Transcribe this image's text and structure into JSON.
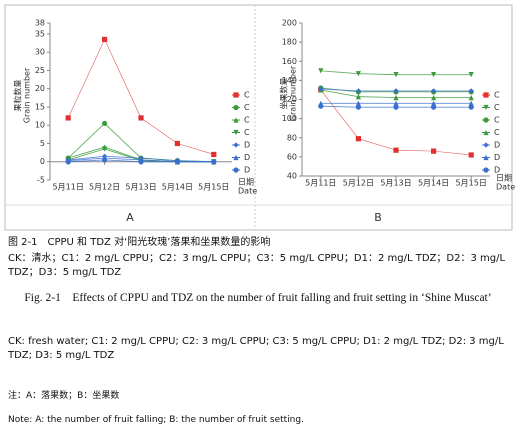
{
  "chart_data": [
    {
      "type": "line",
      "panel": "A",
      "ylabel_cn": "果粒数量",
      "ylabel_en": "Grain number",
      "xlabel_cn": "日期",
      "xlabel_en": "Date",
      "categories": [
        "5月11日",
        "5月12日",
        "5月13日",
        "5月14日",
        "5月15日"
      ],
      "ylim": [
        -5,
        38
      ],
      "yticks": [
        -5,
        0,
        5,
        10,
        15,
        20,
        25,
        30,
        35,
        38
      ],
      "series": [
        {
          "name": "C",
          "color": "#e03030",
          "marker": "square",
          "values": [
            12,
            33.5,
            12,
            5,
            2
          ]
        },
        {
          "name": "C",
          "color": "#3c9a3c",
          "marker": "circle",
          "values": [
            1,
            10.5,
            1,
            0.3,
            0
          ]
        },
        {
          "name": "C",
          "color": "#3c9a3c",
          "marker": "triangle",
          "values": [
            1,
            4,
            0.5,
            0,
            0
          ]
        },
        {
          "name": "C",
          "color": "#3c9a3c",
          "marker": "triangle-down",
          "values": [
            0.5,
            3.5,
            0.3,
            0,
            0
          ]
        },
        {
          "name": "D",
          "color": "#3a6fd0",
          "marker": "diamond",
          "values": [
            0.5,
            1.5,
            1,
            0.3,
            0
          ]
        },
        {
          "name": "D",
          "color": "#3a6fd0",
          "marker": "triangle",
          "values": [
            0.3,
            1,
            0.5,
            0,
            0
          ]
        },
        {
          "name": "D",
          "color": "#3a6fd0",
          "marker": "circle",
          "values": [
            0,
            0.5,
            0,
            0,
            0
          ]
        }
      ]
    },
    {
      "type": "line",
      "panel": "B",
      "ylabel_cn": "坐果数量",
      "ylabel_en": "Grain number",
      "xlabel_cn": "日期",
      "xlabel_en": "Date",
      "categories": [
        "5月11日",
        "5月12日",
        "5月13日",
        "5月14日",
        "5月15日"
      ],
      "ylim": [
        40,
        200
      ],
      "yticks": [
        40,
        60,
        80,
        100,
        120,
        140,
        160,
        180,
        200
      ],
      "series": [
        {
          "name": "C",
          "color": "#e03030",
          "marker": "square",
          "values": [
            130,
            79,
            67,
            66,
            62
          ]
        },
        {
          "name": "C",
          "color": "#3c9a3c",
          "marker": "triangle-down",
          "values": [
            150,
            147,
            146,
            146,
            146
          ]
        },
        {
          "name": "C",
          "color": "#3c9a3c",
          "marker": "circle",
          "values": [
            132,
            128,
            128,
            128,
            128
          ]
        },
        {
          "name": "C",
          "color": "#3c9a3c",
          "marker": "triangle",
          "values": [
            130,
            123,
            122,
            122,
            122
          ]
        },
        {
          "name": "D",
          "color": "#3a6fd0",
          "marker": "diamond",
          "values": [
            131,
            129,
            129,
            129,
            129
          ]
        },
        {
          "name": "D",
          "color": "#3a6fd0",
          "marker": "triangle",
          "values": [
            116,
            116,
            116,
            116,
            116
          ]
        },
        {
          "name": "D",
          "color": "#3a6fd0",
          "marker": "circle",
          "values": [
            113,
            112,
            112,
            112,
            112
          ]
        }
      ]
    }
  ],
  "caption": {
    "title_cn": "图 2-1　CPPU 和 TDZ 对‘阳光玫瑰’落果和坐果数量的影响",
    "legend_cn": "CK：清水；C1：2 mg/L CPPU；C2：3 mg/L CPPU；C3：5 mg/L CPPU；D1：2 mg/L TDZ；D2：3 mg/L TDZ；D3：5 mg/L TDZ",
    "title_en": "Fig. 2-1　Effects of CPPU and TDZ on the number of fruit falling and fruit setting in ‘Shine Muscat’",
    "legend_en": "CK: fresh water; C1: 2 mg/L CPPU; C2: 3 mg/L CPPU; C3: 5 mg/L CPPU; D1: 2 mg/L TDZ; D2: 3 mg/L TDZ; D3: 5 mg/L TDZ",
    "note_cn": "注：A：落果数；B：坐果数",
    "note_en": "Note: A: the number of fruit falling; B: the number of fruit setting."
  }
}
